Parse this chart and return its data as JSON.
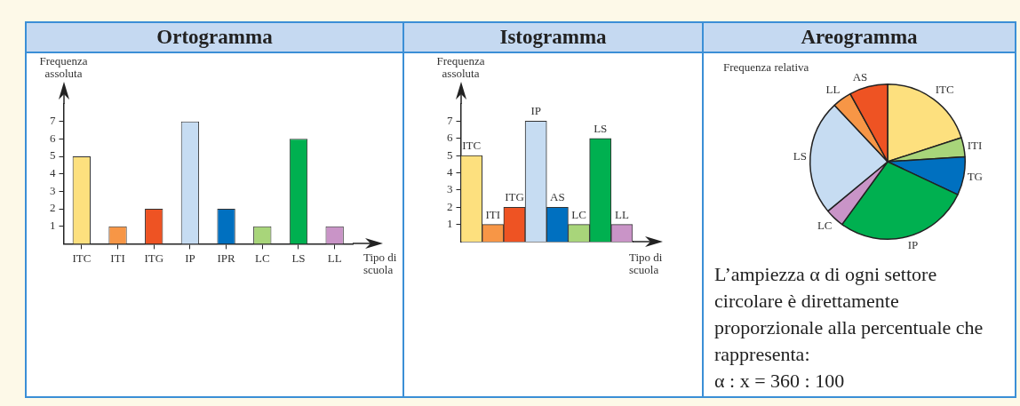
{
  "chart_data": [
    {
      "type": "bar",
      "title": "Ortogramma",
      "ylabel": "Frequenza assoluta",
      "xlabel": "Tipo di scuola",
      "categories": [
        "ITC",
        "ITI",
        "ITG",
        "IP",
        "IPR",
        "LC",
        "LS",
        "LL"
      ],
      "values": [
        5,
        1,
        2,
        7,
        2,
        1,
        6,
        1
      ],
      "colors": [
        "#fde07e",
        "#f79646",
        "#ee5323",
        "#c6dcf2",
        "#0070c0",
        "#a8d57a",
        "#00b050",
        "#c994c7"
      ],
      "ylim": [
        0,
        8
      ],
      "yticks": [
        1,
        2,
        3,
        4,
        5,
        6,
        7
      ],
      "grid": false
    },
    {
      "type": "bar",
      "title": "Istogramma",
      "ylabel": "Frequenza assoluta",
      "xlabel": "Tipo di scuola",
      "categories": [
        "ITC",
        "ITI",
        "ITG",
        "IP",
        "AS",
        "LC",
        "LS",
        "LL"
      ],
      "values": [
        5,
        1,
        2,
        7,
        2,
        1,
        6,
        1
      ],
      "colors": [
        "#fde07e",
        "#f79646",
        "#ee5323",
        "#c6dcf2",
        "#0070c0",
        "#a8d57a",
        "#00b050",
        "#c994c7"
      ],
      "ylim": [
        0,
        8
      ],
      "yticks": [
        1,
        2,
        3,
        4,
        5,
        6,
        7
      ],
      "grid": false,
      "tick_labels": "y",
      "annotations": [
        {
          "text": "ITC",
          "x": "ITC",
          "y": 5
        },
        {
          "text": "ITI",
          "x": "ITI",
          "y": 1
        },
        {
          "text": "ITG",
          "x": "ITG",
          "y": 2
        },
        {
          "text": "IP",
          "x": "IP",
          "y": 7
        },
        {
          "text": "AS",
          "x": "AS",
          "y": 2
        },
        {
          "text": "LC",
          "x": "LC",
          "y": 1
        },
        {
          "text": "LS",
          "x": "LS",
          "y": 6
        },
        {
          "text": "LL",
          "x": "LL",
          "y": 1
        }
      ]
    },
    {
      "type": "pie",
      "title": "Areogramma",
      "subtitle": "Frequenza relativa",
      "categories": [
        "ITC",
        "ITI",
        "TG",
        "IP",
        "LC",
        "LS",
        "LL",
        "AS"
      ],
      "values": [
        20,
        4,
        8,
        28,
        4,
        24,
        4,
        8
      ],
      "colors": [
        "#fde07e",
        "#a8d57a",
        "#0070c0",
        "#00b050",
        "#c994c7",
        "#c6dcf2",
        "#f79646",
        "#ee5323"
      ],
      "annotations": [
        "L’ampiezza α di ogni settore circolare è direttamente proporzionale alla percentuale che rappresenta:",
        "α : x = 360 : 100"
      ]
    }
  ]
}
